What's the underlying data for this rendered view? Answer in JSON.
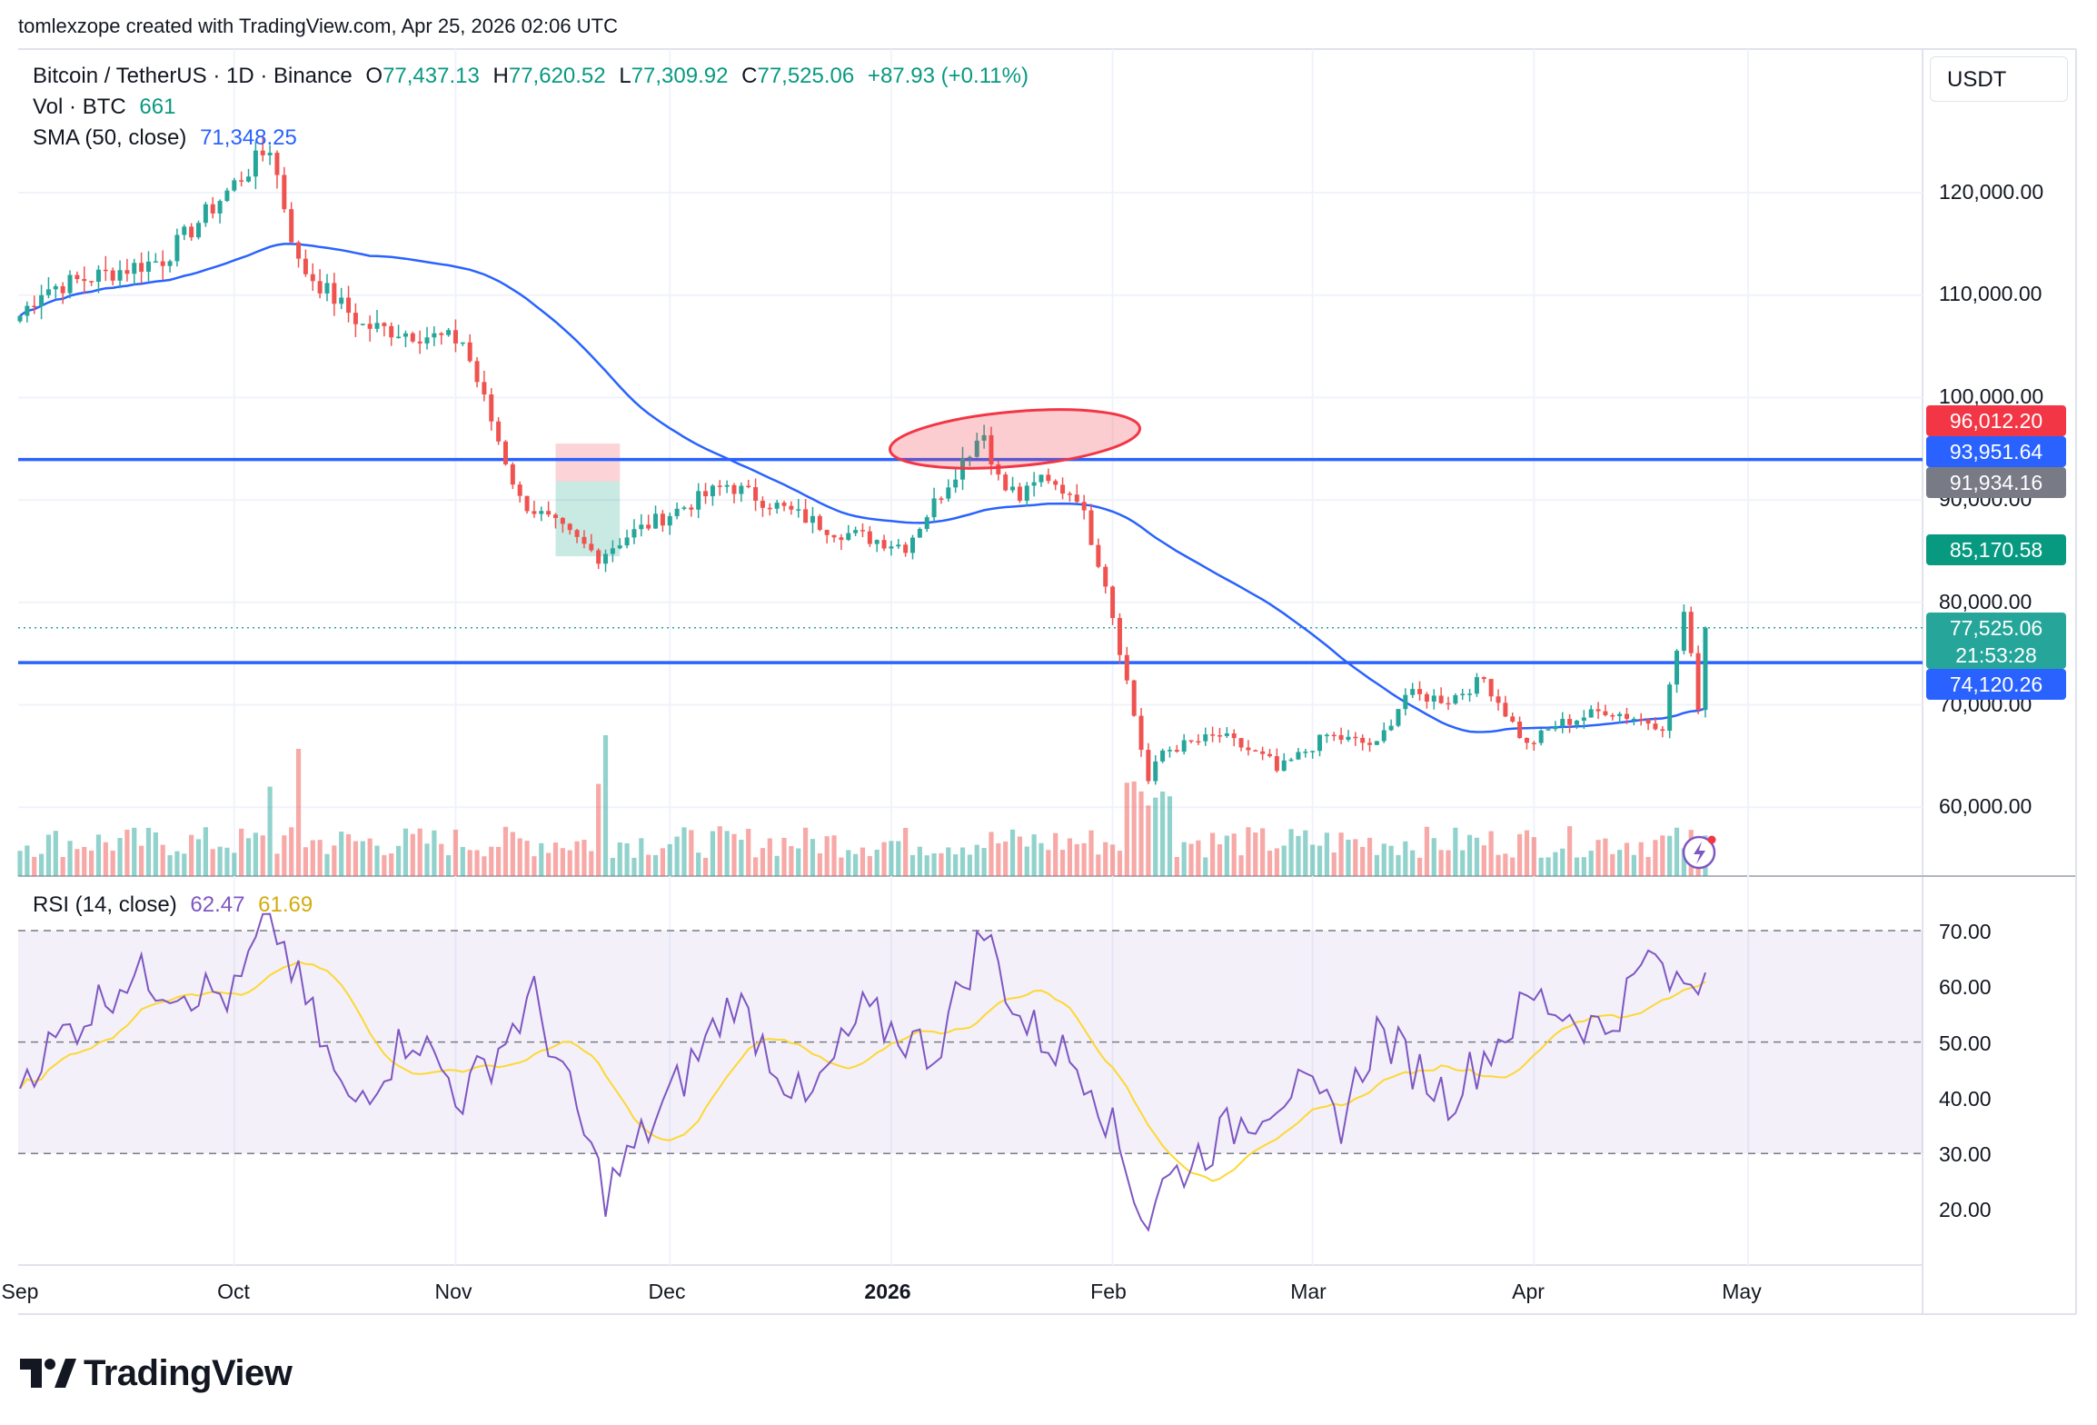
{
  "header": {
    "attribution": "tomlexzope created with TradingView.com, Apr 25, 2026 02:06 UTC"
  },
  "legend": {
    "symbol": "Bitcoin / TetherUS · 1D · Binance",
    "o_label": "O",
    "o_value": "77,437.13",
    "h_label": "H",
    "h_value": "77,620.52",
    "l_label": "L",
    "l_value": "77,309.92",
    "c_label": "C",
    "c_value": "77,525.06",
    "change": "+87.93 (+0.11%)",
    "vol_label": "Vol · BTC",
    "vol_value": "661",
    "sma_label": "SMA (50, close)",
    "sma_value": "71,348.25",
    "rsi_label": "RSI (14, close)",
    "rsi_value": "62.47",
    "rsi_ma_value": "61.69"
  },
  "currency": "USDT",
  "price_axis": [
    "120,000.00",
    "110,000.00",
    "100,000.00",
    "90,000.00",
    "80,000.00",
    "70,000.00",
    "60,000.00"
  ],
  "price_tags": {
    "t96012": "96,012.20",
    "t93951": "93,951.64",
    "t91934": "91,934.16",
    "t85170": "85,170.58",
    "last_price": "77,525.06",
    "countdown": "21:53:28",
    "t74120": "74,120.26"
  },
  "rsi_axis": [
    "70.00",
    "60.00",
    "50.00",
    "40.00",
    "30.00",
    "20.00"
  ],
  "time_axis": [
    "Sep",
    "Oct",
    "Nov",
    "Dec",
    "2026",
    "Feb",
    "Mar",
    "Apr",
    "May"
  ],
  "brand": "TradingView",
  "colors": {
    "up": "#26a69a",
    "down": "#ef5350",
    "sma": "#2962ff",
    "hline": "#2962ff",
    "rsi": "#7e57c2",
    "rsi_ma": "#fdd835",
    "tag_red": "#f23645",
    "tag_blue": "#2962ff",
    "tag_gray": "#787b86",
    "tag_green": "#089981"
  },
  "chart_data": [
    {
      "type": "candlestick",
      "title": "Bitcoin / TetherUS · 1D · Binance",
      "ylim": [
        54000,
        127000
      ],
      "x": [
        "Sep",
        "Oct",
        "Nov",
        "Dec",
        "2026",
        "Feb",
        "Mar",
        "Apr",
        "May"
      ],
      "key_points": {
        "dates": [
          "2025-09-04",
          "2025-10-06",
          "2025-10-10",
          "2025-11-21",
          "2026-01-14",
          "2026-02-06",
          "2026-02-24",
          "2026-03-31",
          "2026-04-22",
          "2026-04-25"
        ],
        "close": [
          110500,
          124500,
          113000,
          84500,
          97000,
          62500,
          63500,
          66000,
          79000,
          77525.06
        ]
      },
      "last": {
        "open": 77437.13,
        "high": 77620.52,
        "low": 77309.92,
        "close": 77525.06,
        "change": 87.93,
        "change_pct": 0.11
      },
      "horizontal_lines": [
        93951.64,
        74120.26
      ],
      "price_tags": [
        96012.2,
        93951.64,
        91934.16,
        85170.58,
        77525.06,
        74120.26
      ],
      "sma_50_last": 71348.25
    },
    {
      "type": "bar",
      "title": "Vol · BTC",
      "last_value": 661
    },
    {
      "type": "line",
      "title": "RSI (14, close)",
      "ylim": [
        14,
        74
      ],
      "bands": [
        30,
        50,
        70
      ],
      "series": [
        {
          "name": "RSI",
          "last": 62.47
        },
        {
          "name": "RSI MA",
          "last": 61.69
        }
      ],
      "key_points": {
        "dates": [
          "2025-10-06",
          "2025-11-22",
          "2026-01-14",
          "2026-02-06",
          "2026-04-18",
          "2026-04-25"
        ],
        "rsi": [
          73,
          23,
          70,
          17,
          67,
          62.47
        ]
      }
    }
  ]
}
